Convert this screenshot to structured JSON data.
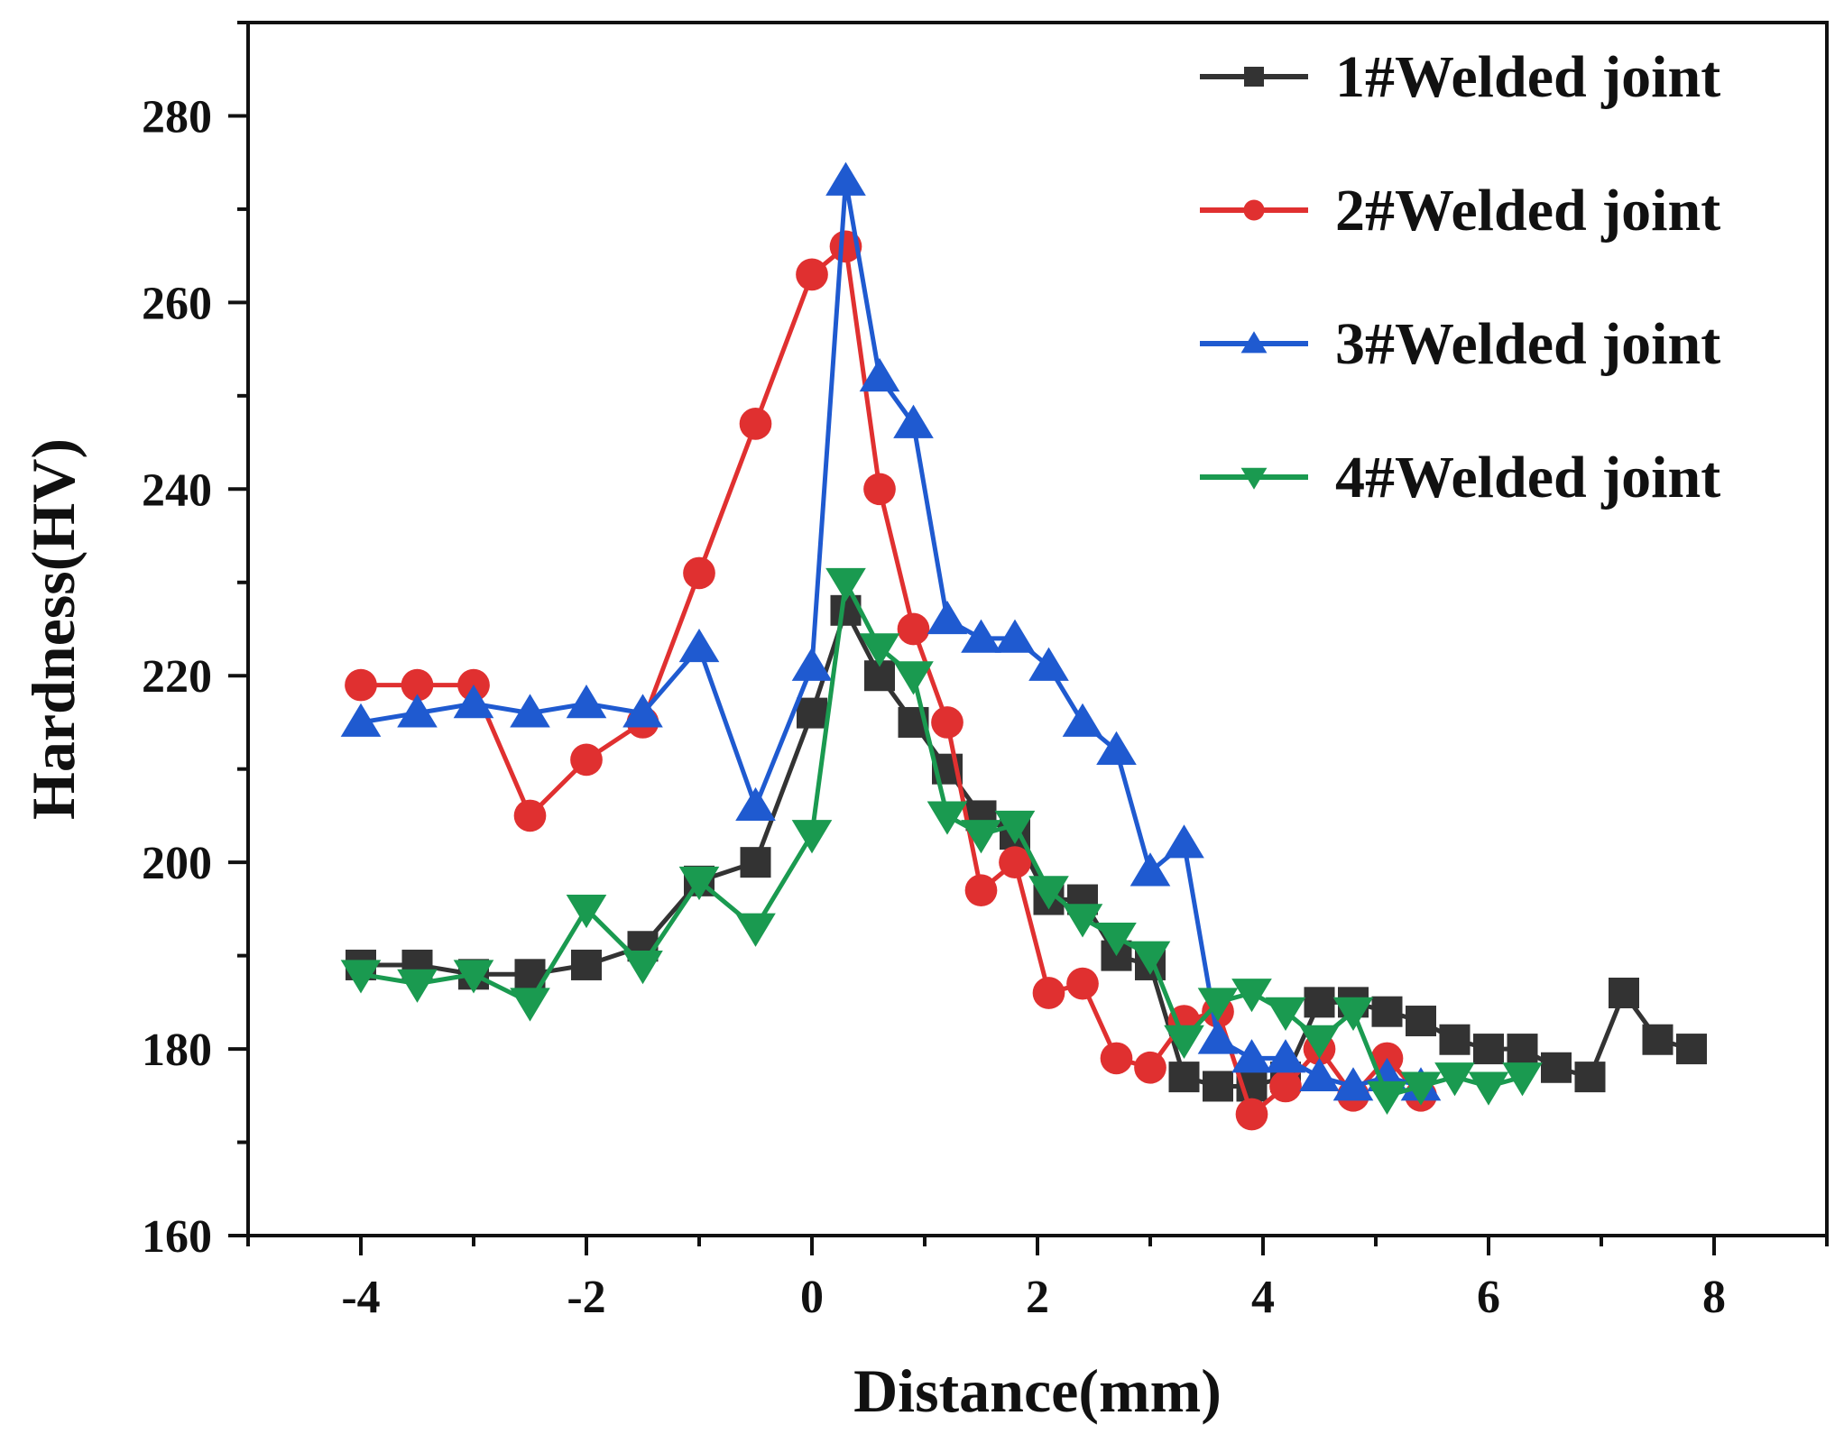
{
  "chart_data": {
    "type": "line",
    "xlabel": "Distance(mm)",
    "ylabel": "Hardness(HV)",
    "xlim": [
      -5,
      9
    ],
    "ylim": [
      160,
      290
    ],
    "xticks": [
      -4,
      -2,
      0,
      2,
      4,
      6,
      8
    ],
    "yticks": [
      160,
      180,
      200,
      220,
      240,
      260,
      280
    ],
    "xtick_labels": [
      "-4",
      "-2",
      "0",
      "2",
      "4",
      "6",
      "8"
    ],
    "ytick_labels": [
      "160",
      "180",
      "200",
      "220",
      "240",
      "260",
      "280"
    ],
    "legend_position": "top-right",
    "series": [
      {
        "name": "1#Welded joint",
        "color": "#333333",
        "marker": "square",
        "x": [
          -4,
          -3.5,
          -3,
          -2.5,
          -2,
          -1.5,
          -1,
          -0.5,
          0,
          0.3,
          0.6,
          0.9,
          1.2,
          1.5,
          1.8,
          2.1,
          2.4,
          2.7,
          3.0,
          3.3,
          3.6,
          3.9,
          4.2,
          4.5,
          4.8,
          5.1,
          5.4,
          5.7,
          6.0,
          6.3,
          6.6,
          6.9,
          7.2,
          7.5,
          7.8
        ],
        "y": [
          189,
          189,
          188,
          188,
          189,
          191,
          198,
          200,
          216,
          227,
          220,
          215,
          210,
          205,
          203,
          196,
          196,
          190,
          189,
          177,
          176,
          176,
          177,
          185,
          185,
          184,
          183,
          181,
          180,
          180,
          178,
          177,
          186,
          181,
          180
        ]
      },
      {
        "name": "2#Welded joint",
        "color": "#e03030",
        "marker": "circle",
        "x": [
          -4,
          -3.5,
          -3,
          -2.5,
          -2,
          -1.5,
          -1,
          -0.5,
          0,
          0.3,
          0.6,
          0.9,
          1.2,
          1.5,
          1.8,
          2.1,
          2.4,
          2.7,
          3.0,
          3.3,
          3.6,
          3.9,
          4.2,
          4.5,
          4.8,
          5.1,
          5.4
        ],
        "y": [
          219,
          219,
          219,
          205,
          211,
          215,
          231,
          247,
          263,
          266,
          240,
          225,
          215,
          197,
          200,
          186,
          187,
          179,
          178,
          183,
          184,
          173,
          176,
          180,
          175,
          179,
          175
        ]
      },
      {
        "name": "3#Welded joint",
        "color": "#1f5ad0",
        "marker": "triangle-up",
        "x": [
          -4,
          -3.5,
          -3,
          -2.5,
          -2,
          -1.5,
          -1,
          -0.5,
          0,
          0.3,
          0.6,
          0.9,
          1.2,
          1.5,
          1.8,
          2.1,
          2.4,
          2.7,
          3.0,
          3.3,
          3.6,
          3.9,
          4.2,
          4.5,
          4.8,
          5.1,
          5.4
        ],
        "y": [
          215,
          216,
          217,
          216,
          217,
          216,
          223,
          206,
          221,
          273,
          252,
          247,
          226,
          224,
          224,
          221,
          215,
          212,
          199,
          202,
          181,
          179,
          179,
          177,
          176,
          177,
          176
        ]
      },
      {
        "name": "4#Welded joint",
        "color": "#1a9a50",
        "marker": "triangle-down",
        "x": [
          -4,
          -3.5,
          -3,
          -2.5,
          -2,
          -1.5,
          -1,
          -0.5,
          0,
          0.3,
          0.6,
          0.9,
          1.2,
          1.5,
          1.8,
          2.1,
          2.4,
          2.7,
          3.0,
          3.3,
          3.6,
          3.9,
          4.2,
          4.5,
          4.8,
          5.1,
          5.4,
          5.7,
          6.0,
          6.3
        ],
        "y": [
          188,
          187,
          188,
          185,
          195,
          189,
          198,
          193,
          203,
          230,
          223,
          220,
          205,
          203,
          204,
          197,
          194,
          192,
          190,
          181,
          185,
          186,
          184,
          181,
          184,
          175,
          176,
          177,
          176,
          177
        ]
      }
    ]
  }
}
